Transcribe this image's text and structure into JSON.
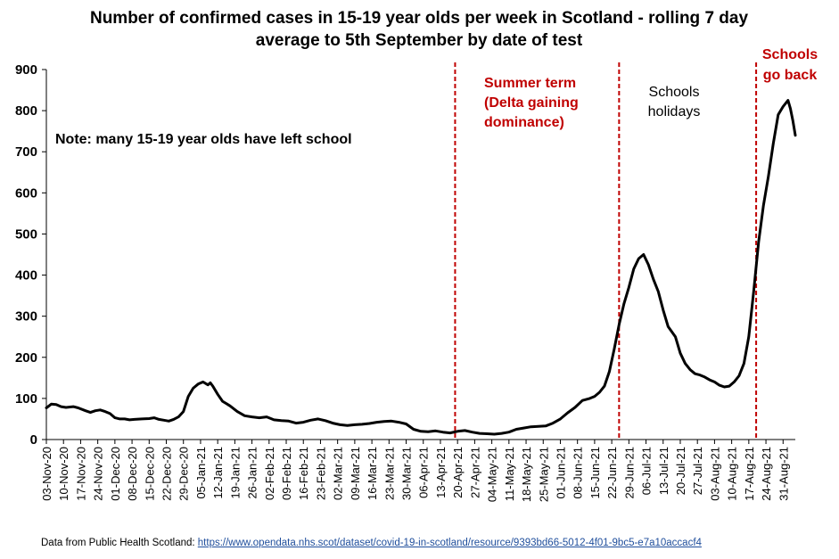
{
  "chart_data": {
    "type": "line",
    "title_line1": "Number of confirmed cases in 15-19 year olds per week in Scotland - rolling 7 day",
    "title_line2": "average to 5th September by date of test",
    "xlabel": "",
    "ylabel": "",
    "ylim": [
      0,
      900
    ],
    "yticks": [
      0,
      100,
      200,
      300,
      400,
      500,
      600,
      700,
      800,
      900
    ],
    "xlim": [
      "2020-11-03",
      "2021-09-05"
    ],
    "x_tick_labels": [
      "03-Nov-20",
      "10-Nov-20",
      "17-Nov-20",
      "24-Nov-20",
      "01-Dec-20",
      "08-Dec-20",
      "15-Dec-20",
      "22-Dec-20",
      "29-Dec-20",
      "05-Jan-21",
      "12-Jan-21",
      "19-Jan-21",
      "26-Jan-21",
      "02-Feb-21",
      "09-Feb-21",
      "16-Feb-21",
      "23-Feb-21",
      "02-Mar-21",
      "09-Mar-21",
      "16-Mar-21",
      "23-Mar-21",
      "30-Mar-21",
      "06-Apr-21",
      "13-Apr-21",
      "20-Apr-21",
      "27-Apr-21",
      "04-May-21",
      "11-May-21",
      "18-May-21",
      "25-May-21",
      "01-Jun-21",
      "08-Jun-21",
      "15-Jun-21",
      "22-Jun-21",
      "29-Jun-21",
      "06-Jul-21",
      "13-Jul-21",
      "20-Jul-21",
      "27-Jul-21",
      "03-Aug-21",
      "10-Aug-21",
      "17-Aug-21",
      "24-Aug-21",
      "31-Aug-21"
    ],
    "gridlines": false,
    "series": [
      {
        "color": "#000000",
        "points": [
          [
            "2020-11-03",
            77
          ],
          [
            "2020-11-05",
            86
          ],
          [
            "2020-11-07",
            85
          ],
          [
            "2020-11-09",
            80
          ],
          [
            "2020-11-11",
            78
          ],
          [
            "2020-11-14",
            80
          ],
          [
            "2020-11-16",
            77
          ],
          [
            "2020-11-19",
            70
          ],
          [
            "2020-11-21",
            66
          ],
          [
            "2020-11-23",
            70
          ],
          [
            "2020-11-25",
            72
          ],
          [
            "2020-11-27",
            68
          ],
          [
            "2020-11-29",
            63
          ],
          [
            "2020-12-01",
            53
          ],
          [
            "2020-12-03",
            50
          ],
          [
            "2020-12-05",
            50
          ],
          [
            "2020-12-07",
            48
          ],
          [
            "2020-12-09",
            49
          ],
          [
            "2020-12-12",
            50
          ],
          [
            "2020-12-15",
            51
          ],
          [
            "2020-12-17",
            53
          ],
          [
            "2020-12-19",
            49
          ],
          [
            "2020-12-21",
            47
          ],
          [
            "2020-12-23",
            45
          ],
          [
            "2020-12-25",
            49
          ],
          [
            "2020-12-27",
            55
          ],
          [
            "2020-12-29",
            68
          ],
          [
            "2020-12-31",
            105
          ],
          [
            "2021-01-02",
            125
          ],
          [
            "2021-01-04",
            135
          ],
          [
            "2021-01-06",
            140
          ],
          [
            "2021-01-08",
            133
          ],
          [
            "2021-01-09",
            138
          ],
          [
            "2021-01-10",
            130
          ],
          [
            "2021-01-12",
            110
          ],
          [
            "2021-01-14",
            93
          ],
          [
            "2021-01-17",
            82
          ],
          [
            "2021-01-20",
            68
          ],
          [
            "2021-01-23",
            58
          ],
          [
            "2021-01-26",
            55
          ],
          [
            "2021-01-29",
            53
          ],
          [
            "2021-02-01",
            55
          ],
          [
            "2021-02-04",
            48
          ],
          [
            "2021-02-07",
            46
          ],
          [
            "2021-02-10",
            45
          ],
          [
            "2021-02-13",
            40
          ],
          [
            "2021-02-16",
            42
          ],
          [
            "2021-02-19",
            47
          ],
          [
            "2021-02-22",
            50
          ],
          [
            "2021-02-25",
            46
          ],
          [
            "2021-02-28",
            40
          ],
          [
            "2021-03-03",
            36
          ],
          [
            "2021-03-06",
            34
          ],
          [
            "2021-03-09",
            36
          ],
          [
            "2021-03-12",
            37
          ],
          [
            "2021-03-15",
            39
          ],
          [
            "2021-03-18",
            42
          ],
          [
            "2021-03-21",
            44
          ],
          [
            "2021-03-24",
            45
          ],
          [
            "2021-03-27",
            42
          ],
          [
            "2021-03-30",
            38
          ],
          [
            "2021-04-02",
            25
          ],
          [
            "2021-04-05",
            20
          ],
          [
            "2021-04-08",
            19
          ],
          [
            "2021-04-11",
            21
          ],
          [
            "2021-04-14",
            18
          ],
          [
            "2021-04-17",
            16
          ],
          [
            "2021-04-20",
            20
          ],
          [
            "2021-04-23",
            22
          ],
          [
            "2021-04-26",
            18
          ],
          [
            "2021-04-29",
            15
          ],
          [
            "2021-05-02",
            14
          ],
          [
            "2021-05-05",
            13
          ],
          [
            "2021-05-08",
            15
          ],
          [
            "2021-05-11",
            18
          ],
          [
            "2021-05-14",
            25
          ],
          [
            "2021-05-17",
            28
          ],
          [
            "2021-05-20",
            31
          ],
          [
            "2021-05-23",
            32
          ],
          [
            "2021-05-26",
            33
          ],
          [
            "2021-05-29",
            40
          ],
          [
            "2021-06-01",
            50
          ],
          [
            "2021-06-04",
            65
          ],
          [
            "2021-06-07",
            78
          ],
          [
            "2021-06-10",
            95
          ],
          [
            "2021-06-13",
            100
          ],
          [
            "2021-06-15",
            105
          ],
          [
            "2021-06-17",
            115
          ],
          [
            "2021-06-19",
            130
          ],
          [
            "2021-06-21",
            165
          ],
          [
            "2021-06-23",
            220
          ],
          [
            "2021-06-25",
            280
          ],
          [
            "2021-06-27",
            330
          ],
          [
            "2021-06-29",
            370
          ],
          [
            "2021-07-01",
            415
          ],
          [
            "2021-07-03",
            440
          ],
          [
            "2021-07-05",
            450
          ],
          [
            "2021-07-07",
            425
          ],
          [
            "2021-07-09",
            390
          ],
          [
            "2021-07-11",
            360
          ],
          [
            "2021-07-13",
            315
          ],
          [
            "2021-07-15",
            275
          ],
          [
            "2021-07-18",
            250
          ],
          [
            "2021-07-20",
            210
          ],
          [
            "2021-07-22",
            185
          ],
          [
            "2021-07-24",
            170
          ],
          [
            "2021-07-26",
            160
          ],
          [
            "2021-07-28",
            157
          ],
          [
            "2021-07-30",
            152
          ],
          [
            "2021-08-01",
            145
          ],
          [
            "2021-08-03",
            140
          ],
          [
            "2021-08-05",
            132
          ],
          [
            "2021-08-07",
            128
          ],
          [
            "2021-08-09",
            130
          ],
          [
            "2021-08-11",
            140
          ],
          [
            "2021-08-13",
            155
          ],
          [
            "2021-08-15",
            185
          ],
          [
            "2021-08-17",
            250
          ],
          [
            "2021-08-19",
            360
          ],
          [
            "2021-08-21",
            480
          ],
          [
            "2021-08-23",
            570
          ],
          [
            "2021-08-25",
            640
          ],
          [
            "2021-08-27",
            720
          ],
          [
            "2021-08-29",
            790
          ],
          [
            "2021-08-31",
            810
          ],
          [
            "2021-09-02",
            825
          ],
          [
            "2021-09-03",
            805
          ],
          [
            "2021-09-04",
            775
          ],
          [
            "2021-09-05",
            740
          ]
        ]
      }
    ],
    "vlines": [
      {
        "date": "2021-04-19",
        "color": "#c00000",
        "style": "dashed"
      },
      {
        "date": "2021-06-25",
        "color": "#c00000",
        "style": "dashed"
      },
      {
        "date": "2021-08-20",
        "color": "#c00000",
        "style": "dashed"
      }
    ],
    "annotations": [
      {
        "id": "summer-term",
        "lines": [
          "Summer term",
          "(Delta gaining",
          "dominance)"
        ],
        "color": "#c00000"
      },
      {
        "id": "schools-holidays",
        "lines": [
          "Schools",
          "holidays"
        ],
        "color": "#000000"
      },
      {
        "id": "schools-go-back",
        "lines": [
          "Schools",
          "go back"
        ],
        "color": "#c00000"
      },
      {
        "id": "note",
        "lines": [
          "Note: many 15-19 year olds have left school"
        ],
        "color": "#000000"
      }
    ]
  },
  "source": {
    "prefix": "Data from  Public Health Scotland: ",
    "url_text": "https://www.opendata.nhs.scot/dataset/covid-19-in-scotland/resource/9393bd66-5012-4f01-9bc5-e7a10accacf4"
  }
}
